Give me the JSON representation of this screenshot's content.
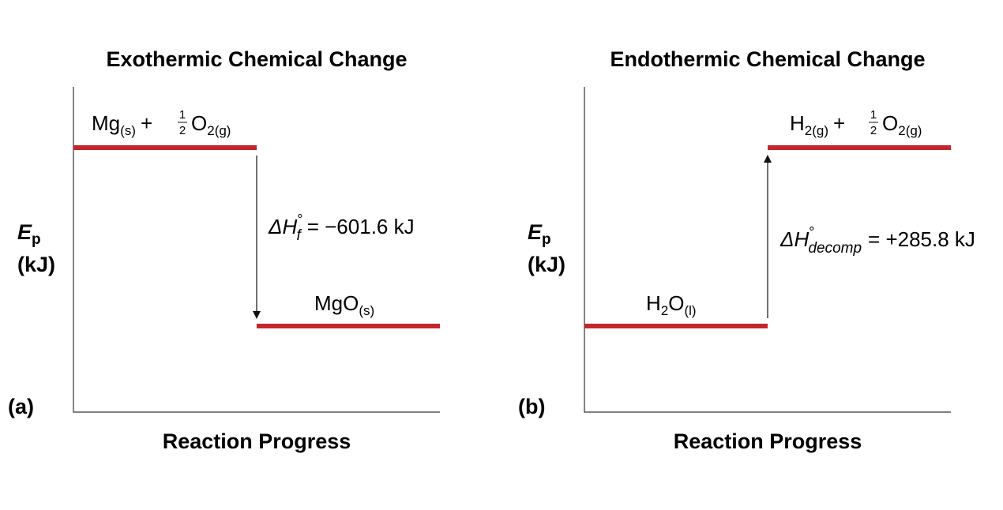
{
  "panel_a": {
    "title": "Exothermic Chemical Change",
    "label": "(a)",
    "y_axis": {
      "symbol": "E",
      "subscript": "p",
      "unit": "(kJ)"
    },
    "x_axis": "Reaction Progress",
    "reactants": {
      "part1": "Mg",
      "part1_sub": "(s)",
      "plus": "+",
      "frac_num": "1",
      "frac_den": "2",
      "part2": "O",
      "part2_sub": "2(g)"
    },
    "products": {
      "part1": "MgO",
      "part1_sub": "(s)"
    },
    "delta": {
      "symbol": "ΔH",
      "degree": "°",
      "subscript": "f",
      "value": "= −601.6 kJ"
    },
    "arrow_direction": "down"
  },
  "panel_b": {
    "title": "Endothermic Chemical Change",
    "label": "(b)",
    "y_axis": {
      "symbol": "E",
      "subscript": "p",
      "unit": "(kJ)"
    },
    "x_axis": "Reaction Progress",
    "reactants": {
      "part1": "H",
      "part1_sub": "2",
      "part2": "O",
      "part2_sub": "(l)"
    },
    "products": {
      "part1": "H",
      "part1_sub": "2(g)",
      "plus": "+",
      "frac_num": "1",
      "frac_den": "2",
      "part2": "O",
      "part2_sub": "2(g)"
    },
    "delta": {
      "symbol": "ΔH",
      "degree": "°",
      "subscript": "decomp",
      "value": "= +285.8 kJ"
    },
    "arrow_direction": "up"
  },
  "colors": {
    "level": "#c1272d",
    "axis": "#333333",
    "text": "#111111"
  }
}
